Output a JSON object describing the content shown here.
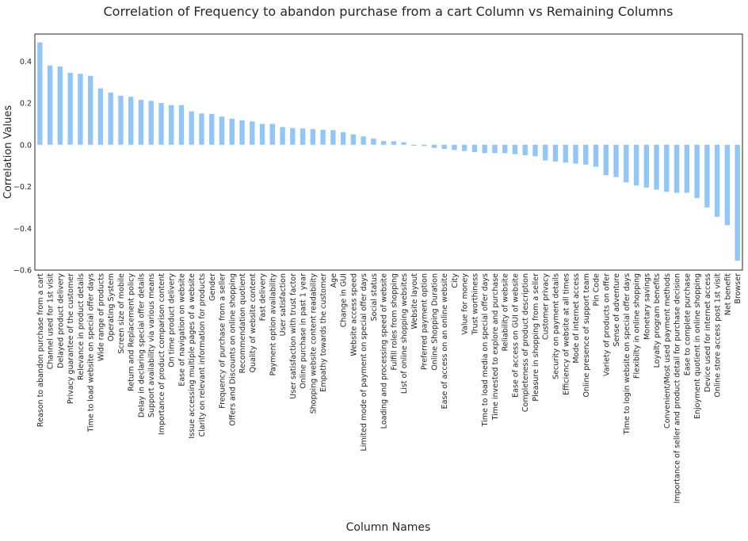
{
  "chart_data": {
    "type": "bar",
    "title": "Correlation of Frequency to abandon purchase from a cart Column vs Remaining Columns",
    "xlabel": "Column Names",
    "ylabel": "Correlation Values",
    "ylim": [
      -0.6,
      0.53
    ],
    "yticks": [
      -0.6,
      -0.4,
      -0.2,
      0.0,
      0.2,
      0.4
    ],
    "ytick_labels": [
      "−0.6",
      "−0.4",
      "−0.2",
      "0.0",
      "0.2",
      "0.4"
    ],
    "grid": false,
    "bar_color": "#92c6f7",
    "categories": [
      "Reason to abandon purchase from a cart",
      "Channel used for 1st visit",
      "Delayed product delivery",
      "Privacy guarantee of the customer",
      "Relevance in product details",
      "Time to load website on special offer days",
      "Wide range of products",
      "Operating System",
      "Screen size of mobile",
      "Return and Replacement policy",
      "Delay in declaring special offer details",
      "Support availability via various means",
      "Importance of product comparison content",
      "On time product delivery",
      "Ease of navigation on website",
      "Issue accessing multiple pages of a website",
      "Clarity on relevant information for products",
      "Gender",
      "Frequency of purchase from a seller",
      "Offers and Discounts on online shopping",
      "Recommendation quotient",
      "Quality of website content",
      "Fast delivery",
      "Payment option availability",
      "User satisfaction",
      "User satisfaction with trust factor",
      "Online purchase in past 1 year",
      "Shopping website content readability",
      "Empathy towards the customer",
      "Age",
      "Change in GUI",
      "Website access speed",
      "Limited mode of payment on special offer days",
      "Social status",
      "Loading and processing speed of website",
      "Fulfill roles from shopping",
      "List of online shopping websites",
      "Website layout",
      "Preferred payment option",
      "Online Shopping Duration",
      "Ease of access on an online website",
      "City",
      "Value for money",
      "Trust worthiness",
      "Time to load media on special offer days",
      "Time invested to explore and purchase",
      "Reliability of website",
      "Ease of access on GUI of website",
      "Completeness of product description",
      "Pleasure in shopping from a seller",
      "Customer privacy",
      "Security on payment details",
      "Efficiency of website at all times",
      "Mode of internet access",
      "Online presence of support team",
      "Pin Code",
      "Variety of products on offer",
      "Sense of adventure",
      "Time to login website on special offer days",
      "Flexibilty in online shopping",
      "Monetary savings",
      "Loyalty program benefits",
      "Convenient/Most used payment methods",
      "Importance of seller and product detail for purchase decision",
      "Ease to complete purchase",
      "Enjoyment quotient in online shopping",
      "Device used for internet access",
      "Online store access post 1st visit",
      "Net benefit",
      "Browser"
    ],
    "values": [
      0.49,
      0.38,
      0.375,
      0.345,
      0.34,
      0.33,
      0.27,
      0.25,
      0.235,
      0.23,
      0.215,
      0.21,
      0.2,
      0.19,
      0.19,
      0.16,
      0.15,
      0.148,
      0.135,
      0.125,
      0.117,
      0.112,
      0.1,
      0.1,
      0.085,
      0.08,
      0.078,
      0.075,
      0.072,
      0.07,
      0.06,
      0.05,
      0.04,
      0.03,
      0.018,
      0.017,
      0.012,
      -0.005,
      -0.006,
      -0.015,
      -0.02,
      -0.025,
      -0.03,
      -0.035,
      -0.04,
      -0.04,
      -0.04,
      -0.045,
      -0.05,
      -0.055,
      -0.075,
      -0.08,
      -0.085,
      -0.09,
      -0.095,
      -0.105,
      -0.145,
      -0.155,
      -0.18,
      -0.195,
      -0.205,
      -0.215,
      -0.225,
      -0.23,
      -0.23,
      -0.255,
      -0.3,
      -0.345,
      -0.385,
      -0.555
    ]
  }
}
